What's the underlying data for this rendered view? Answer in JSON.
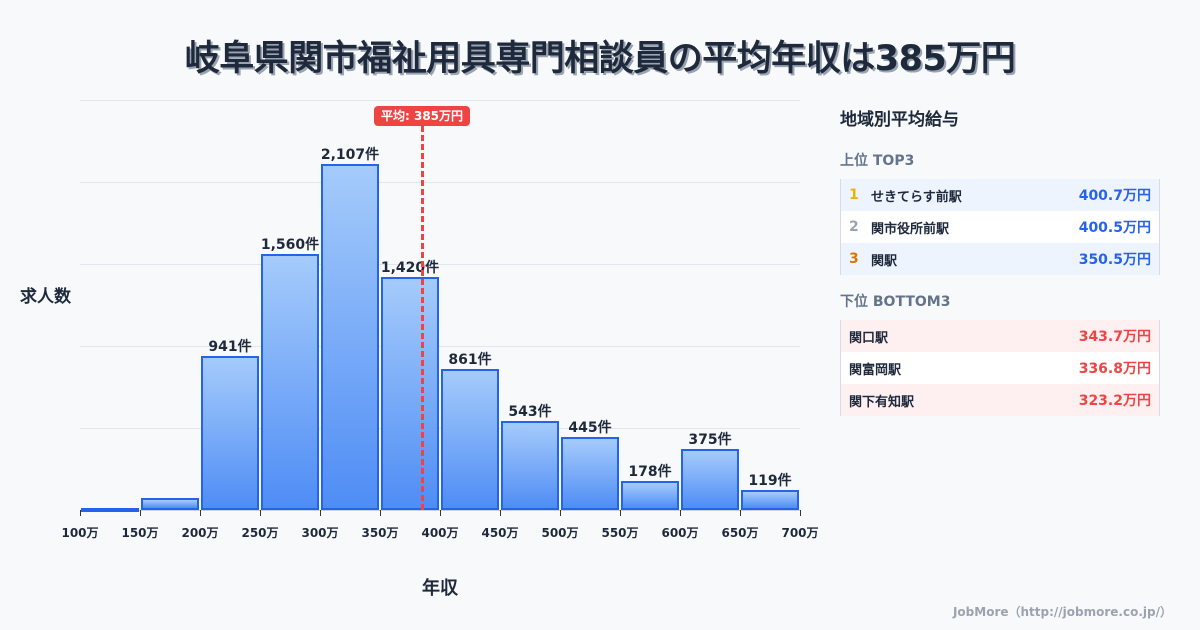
{
  "title": "岐阜県関市福祉用具専門相談員の平均年収は385万円",
  "chart_data": {
    "type": "bar",
    "title": "岐阜県関市福祉用具専門相談員の平均年収は385万円",
    "xlabel": "年収",
    "ylabel": "求人数",
    "categories": [
      "100-150万",
      "150-200万",
      "200-250万",
      "250-300万",
      "300-350万",
      "350-400万",
      "400-450万",
      "450-500万",
      "500-550万",
      "550-600万",
      "600-650万",
      "650-700万"
    ],
    "values": [
      5,
      72,
      941,
      1560,
      2107,
      1420,
      861,
      543,
      445,
      178,
      375,
      119
    ],
    "labels": [
      "",
      "",
      "941件",
      "1,560件",
      "2,107件",
      "1,420件",
      "861件",
      "543件",
      "445件",
      "178件",
      "375件",
      "119件"
    ],
    "x_ticks": [
      "100万",
      "150万",
      "200万",
      "250万",
      "300万",
      "350万",
      "400万",
      "450万",
      "500万",
      "550万",
      "600万",
      "650万",
      "700万"
    ],
    "ylim": [
      0,
      2500
    ],
    "grid": true,
    "average": {
      "value": 385,
      "label": "平均: 385万円",
      "color": "#ef4444"
    },
    "bar_color": "#4f8df5",
    "bar_border": "#2563eb"
  },
  "panel": {
    "title": "地域別平均給与",
    "top_title": "上位 TOP3",
    "top": [
      {
        "rank": "1",
        "name": "せきてらす前駅",
        "value": "400.7万円",
        "rank_color": "#eab308"
      },
      {
        "rank": "2",
        "name": "関市役所前駅",
        "value": "400.5万円",
        "rank_color": "#9ca3af"
      },
      {
        "rank": "3",
        "name": "関駅",
        "value": "350.5万円",
        "rank_color": "#d97706"
      }
    ],
    "bottom_title": "下位 BOTTOM3",
    "bottom": [
      {
        "name": "関口駅",
        "value": "343.7万円"
      },
      {
        "name": "関富岡駅",
        "value": "336.8万円"
      },
      {
        "name": "関下有知駅",
        "value": "323.2万円"
      }
    ]
  },
  "footer": "JobMore（http://jobmore.co.jp/）"
}
